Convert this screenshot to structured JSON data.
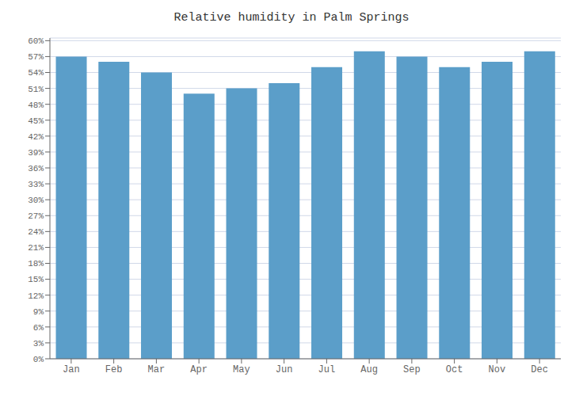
{
  "chart_data": {
    "type": "bar",
    "title": "Relative humidity in Palm Springs",
    "categories": [
      "Jan",
      "Feb",
      "Mar",
      "Apr",
      "May",
      "Jun",
      "Jul",
      "Aug",
      "Sep",
      "Oct",
      "Nov",
      "Dec"
    ],
    "values": [
      57,
      56,
      54,
      50,
      51,
      52,
      55,
      58,
      57,
      55,
      56,
      58
    ],
    "color": "#5b9ec9",
    "ylim": [
      0,
      60.5
    ],
    "yticks": [
      {
        "value": 0,
        "label": "0%"
      },
      {
        "value": 3,
        "label": "3%"
      },
      {
        "value": 6,
        "label": "6%"
      },
      {
        "value": 9,
        "label": "9%"
      },
      {
        "value": 12,
        "label": "12%"
      },
      {
        "value": 15,
        "label": "15%"
      },
      {
        "value": 18,
        "label": "18%"
      },
      {
        "value": 21,
        "label": "21%"
      },
      {
        "value": 24,
        "label": "24%"
      },
      {
        "value": 27,
        "label": "27%"
      },
      {
        "value": 30,
        "label": "30%"
      },
      {
        "value": 33,
        "label": "33%"
      },
      {
        "value": 36,
        "label": "36%"
      },
      {
        "value": 39,
        "label": "39%"
      },
      {
        "value": 42,
        "label": "42%"
      },
      {
        "value": 45,
        "label": "45%"
      },
      {
        "value": 48,
        "label": "48%"
      },
      {
        "value": 51,
        "label": "51%"
      },
      {
        "value": 54,
        "label": "54%"
      },
      {
        "value": 57,
        "label": "57%"
      },
      {
        "value": 60,
        "label": "60%"
      }
    ],
    "grid": true
  }
}
